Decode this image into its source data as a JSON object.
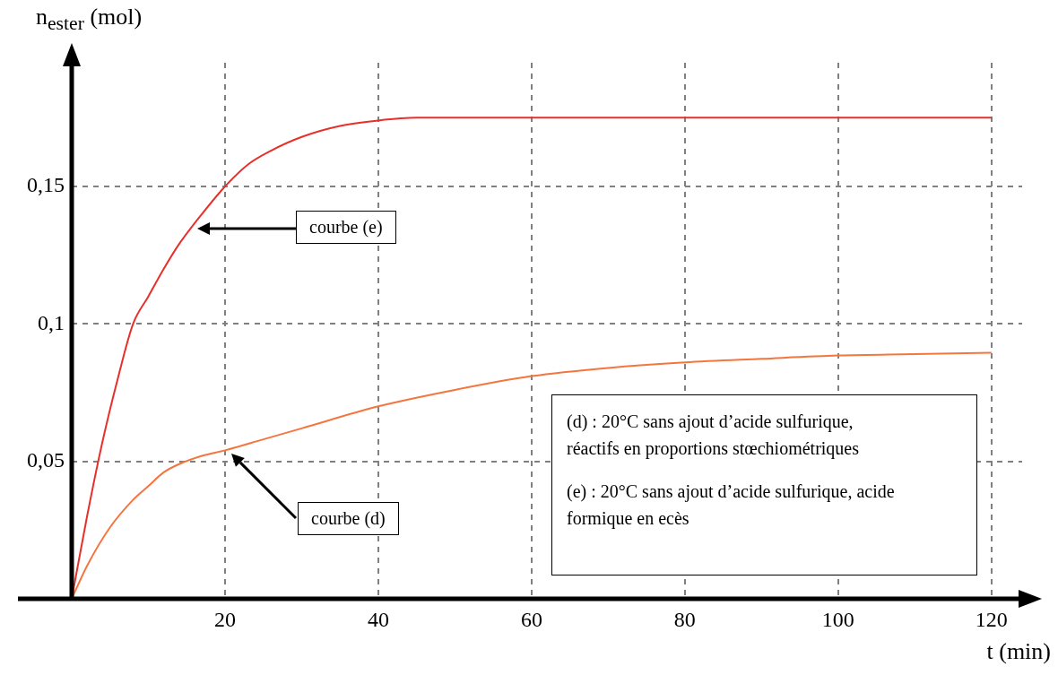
{
  "chart_data": {
    "type": "line",
    "xlabel": "t (min)",
    "ylabel": "n$_{ester}$ (mol)",
    "xlim": [
      0,
      124
    ],
    "ylim": [
      0,
      0.195
    ],
    "xticks": [
      20,
      40,
      60,
      80,
      100,
      120
    ],
    "yticks": [
      {
        "value": 0.05,
        "label": "0,05"
      },
      {
        "value": 0.1,
        "label": "0,1"
      },
      {
        "value": 0.15,
        "label": "0,15"
      }
    ],
    "grid": true,
    "legend": false,
    "marker": "none",
    "line_style": "solid",
    "series": [
      {
        "color": "#e8302a",
        "x": [
          0,
          2,
          4,
          6,
          8,
          10,
          12,
          14,
          17,
          20,
          23,
          26,
          30,
          35,
          40,
          45,
          50,
          60,
          80,
          100,
          120
        ],
        "values": [
          0,
          0.03,
          0.057,
          0.08,
          0.1,
          0.11,
          0.12,
          0.129,
          0.14,
          0.15,
          0.158,
          0.163,
          0.168,
          0.172,
          0.174,
          0.175,
          0.175,
          0.175,
          0.175,
          0.175,
          0.175
        ]
      },
      {
        "color": "#f4763f",
        "x": [
          0,
          2,
          5,
          8,
          10,
          12,
          14,
          17,
          20,
          25,
          30,
          40,
          50,
          60,
          70,
          80,
          90,
          100,
          110,
          120
        ],
        "values": [
          0,
          0.012,
          0.026,
          0.036,
          0.041,
          0.046,
          0.049,
          0.052,
          0.054,
          0.058,
          0.062,
          0.07,
          0.076,
          0.081,
          0.084,
          0.086,
          0.0873,
          0.0885,
          0.089,
          0.0895
        ]
      }
    ],
    "annotations": [
      "courbe (e)",
      "courbe (d)",
      "(d) : 20°C sans ajout d’acide sulfurique, réactifs en proportions stœchiométriques",
      "(e) : 20°C sans ajout d’acide sulfurique, acide formique en ecès"
    ]
  }
}
